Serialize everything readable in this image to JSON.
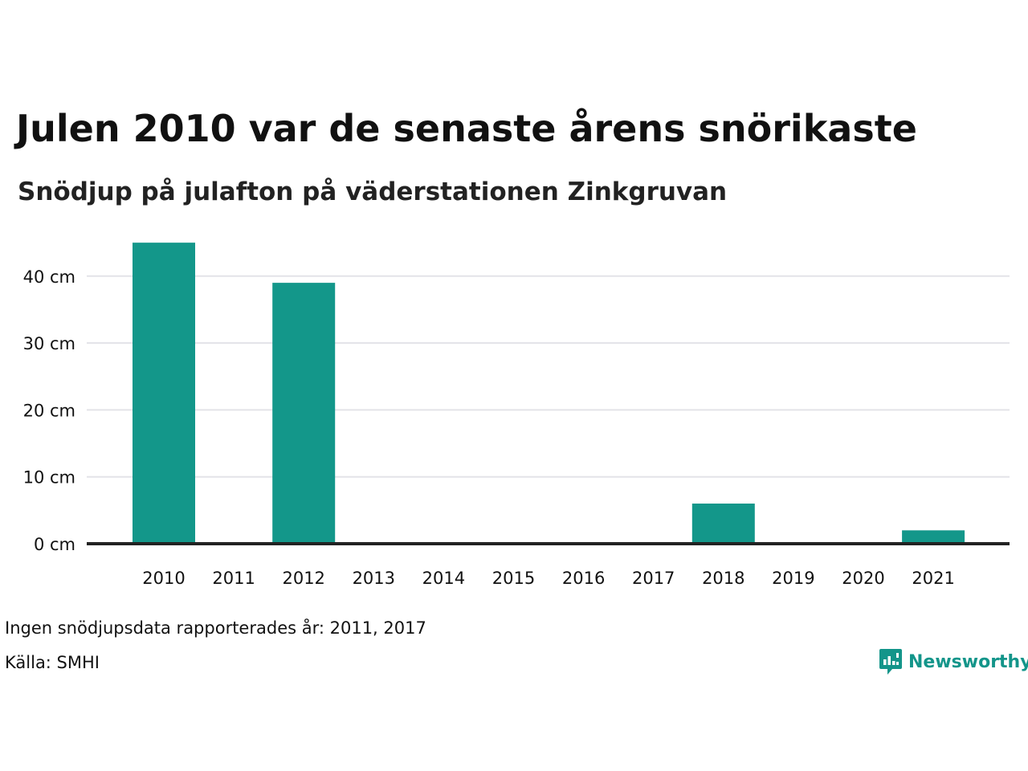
{
  "header": {
    "title": "Julen 2010 var de senaste årens snörikaste",
    "subtitle": "Snödjup på julafton på väderstationen Zinkgruvan"
  },
  "chart_data": {
    "type": "bar",
    "categories": [
      "2010",
      "2011",
      "2012",
      "2013",
      "2014",
      "2015",
      "2016",
      "2017",
      "2018",
      "2019",
      "2020",
      "2021"
    ],
    "values": [
      45,
      null,
      39,
      0,
      0,
      0,
      0,
      null,
      6,
      0,
      0,
      2
    ],
    "title": "Julen 2010 var de senaste årens snörikaste",
    "subtitle": "Snödjup på julafton på väderstationen Zinkgruvan",
    "unit": "cm",
    "ylim": [
      0,
      45
    ],
    "yticks": [
      0,
      10,
      20,
      30,
      40
    ],
    "ytick_labels": [
      "0 cm",
      "10 cm",
      "20 cm",
      "30 cm",
      "40 cm"
    ],
    "grid": true,
    "bar_color": "#13978a",
    "grid_color": "#e3e3e8",
    "axis_color": "#222222"
  },
  "footer": {
    "note": "Ingen snödjupsdata rapporterades år: 2011, 2017",
    "source": "Källa: SMHI"
  },
  "brand": {
    "name": "Newsworthy",
    "icon": "newsworthy-logo-icon",
    "color": "#13958a"
  }
}
